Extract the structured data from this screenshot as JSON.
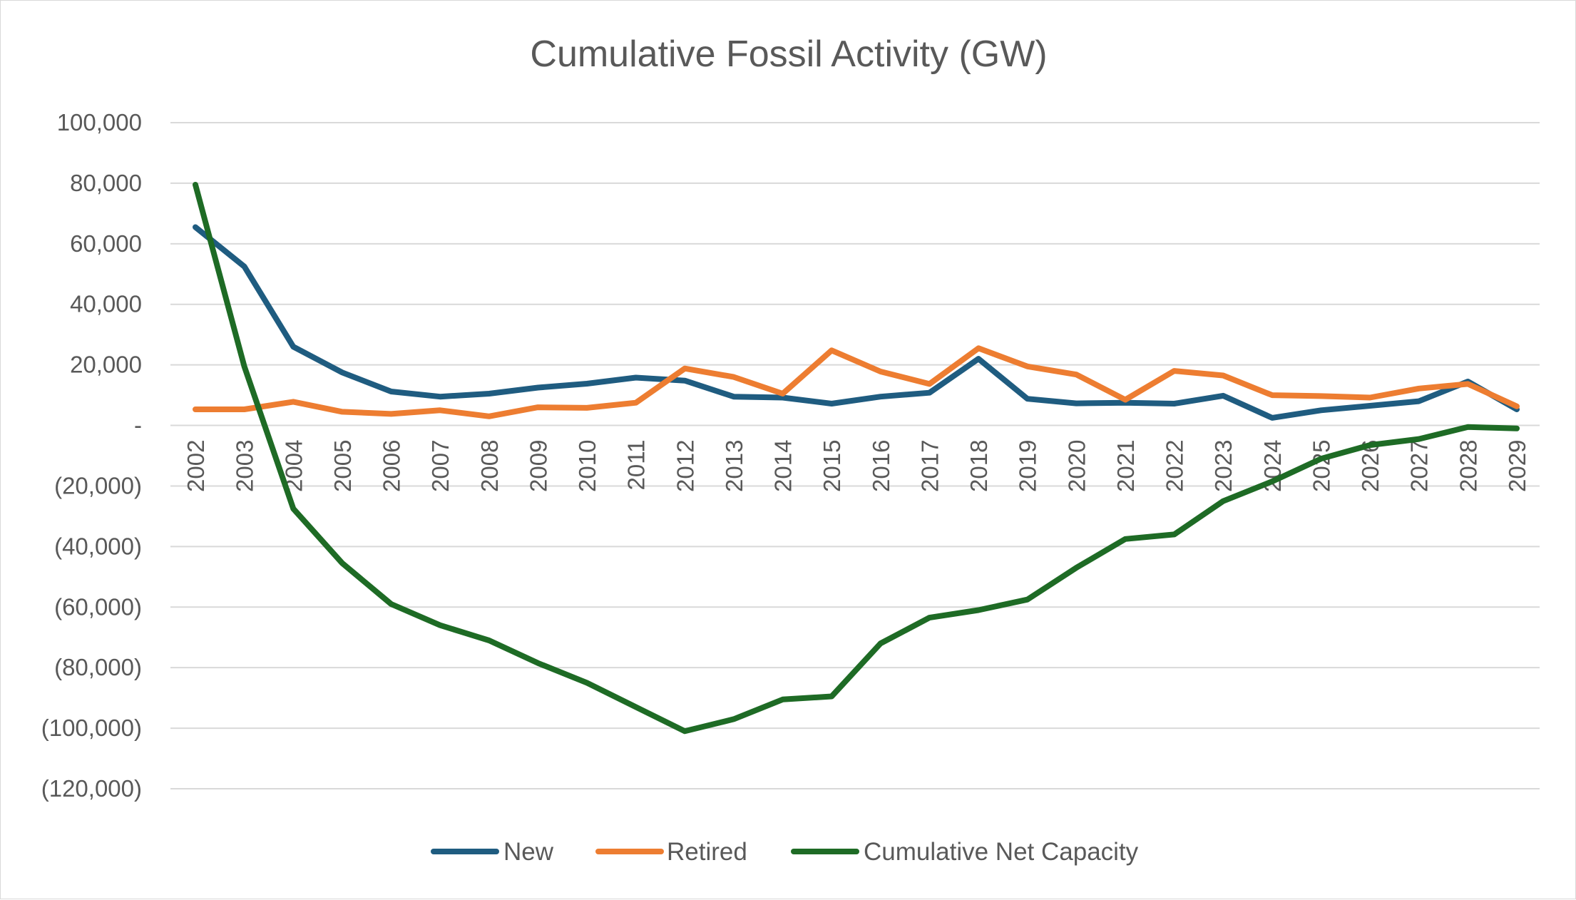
{
  "chart_data": {
    "type": "line",
    "title": "Cumulative Fossil Activity (GW)",
    "xlabel": "",
    "ylabel": "",
    "ylim": [
      -120000,
      100000
    ],
    "grid": true,
    "legend_position": "bottom",
    "y_ticks": [
      {
        "value": 100000,
        "label": "100,000"
      },
      {
        "value": 80000,
        "label": "80,000"
      },
      {
        "value": 60000,
        "label": "60,000"
      },
      {
        "value": 40000,
        "label": "40,000"
      },
      {
        "value": 20000,
        "label": "20,000"
      },
      {
        "value": 0,
        "label": "-"
      },
      {
        "value": -20000,
        "label": "(20,000)"
      },
      {
        "value": -40000,
        "label": "(40,000)"
      },
      {
        "value": -60000,
        "label": "(60,000)"
      },
      {
        "value": -80000,
        "label": "(80,000)"
      },
      {
        "value": -100000,
        "label": "(100,000)"
      },
      {
        "value": -120000,
        "label": "(120,000)"
      }
    ],
    "categories": [
      "2002",
      "2003",
      "2004",
      "2005",
      "2006",
      "2007",
      "2008",
      "2009",
      "2010",
      "2011",
      "2012",
      "2013",
      "2014",
      "2015",
      "2016",
      "2017",
      "2018",
      "2019",
      "2020",
      "2021",
      "2022",
      "2023",
      "2024",
      "2025",
      "2026",
      "2027",
      "2028",
      "2029"
    ],
    "series": [
      {
        "name": "New",
        "color": "#1f5c80",
        "values": [
          65500,
          52500,
          26000,
          17500,
          11200,
          9500,
          10500,
          12500,
          13800,
          15800,
          14800,
          9500,
          9200,
          7200,
          9500,
          10800,
          22000,
          8800,
          7300,
          7500,
          7200,
          9800,
          2500,
          5000,
          6500,
          8000,
          14500,
          5300
        ]
      },
      {
        "name": "Retired",
        "color": "#ed7d31",
        "values": [
          5300,
          5300,
          7800,
          4500,
          3800,
          5000,
          3000,
          6000,
          5800,
          7500,
          18800,
          16000,
          10500,
          24800,
          17800,
          13700,
          25500,
          19500,
          16800,
          8500,
          18000,
          16500,
          10000,
          9700,
          9200,
          12200,
          13700,
          6300
        ]
      },
      {
        "name": "Cumulative Net Capacity",
        "color": "#1e6b25",
        "values": [
          79500,
          19500,
          -27500,
          -45500,
          -59000,
          -66000,
          -71000,
          -78500,
          -85000,
          -93000,
          -101000,
          -97000,
          -90500,
          -89500,
          -72000,
          -63500,
          -61000,
          -57500,
          -47000,
          -37500,
          -36000,
          -25000,
          -18500,
          -11000,
          -6500,
          -4500,
          -500,
          -1000
        ]
      }
    ]
  }
}
